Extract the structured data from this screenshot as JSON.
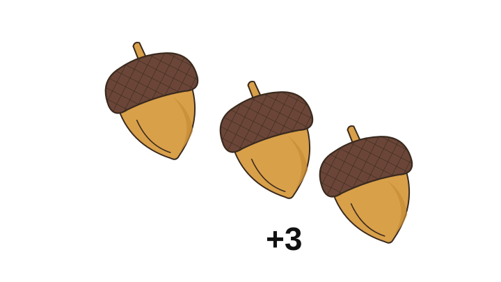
{
  "scene": {
    "item_icon": "acorn-icon",
    "item_count": 3,
    "count_label": "+3",
    "colors": {
      "background": "#ffffff",
      "acorn_body": "#d9a04a",
      "acorn_body_shade": "#c58a35",
      "acorn_cap": "#6b4638",
      "acorn_cap_dark": "#4a2e24",
      "acorn_stem": "#d9a04a",
      "outline": "#3a2a1e",
      "label": "#111111"
    }
  }
}
